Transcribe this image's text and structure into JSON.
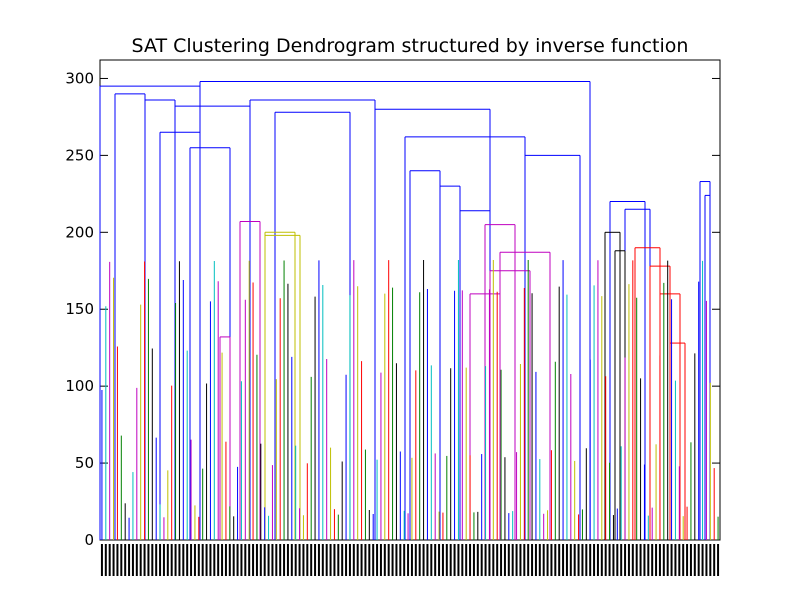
{
  "chart_data": {
    "type": "dendrogram",
    "title": "SAT Clustering Dendrogram structured by inverse function",
    "xlabel": "",
    "ylabel": "",
    "ylim": [
      0,
      312
    ],
    "y_ticks": [
      0,
      50,
      100,
      150,
      200,
      250,
      300
    ],
    "grid": false,
    "leaf_labels": [],
    "color_threshold_groups": [
      {
        "color": "#0000ff"
      },
      {
        "color": "#00bfbf"
      },
      {
        "color": "#bf00bf"
      },
      {
        "color": "#bfbf00"
      },
      {
        "color": "#ff0000"
      },
      {
        "color": "#008000"
      },
      {
        "color": "#000000"
      }
    ],
    "links": [
      {
        "x1": 0.0,
        "x2": 0.2,
        "y": 295,
        "color": "#0000ff"
      },
      {
        "x1": 0.2,
        "x2": 0.98,
        "y": 298,
        "color": "#0000ff"
      },
      {
        "x1": 0.03,
        "x2": 0.09,
        "y": 290,
        "color": "#0000ff"
      },
      {
        "x1": 0.09,
        "x2": 0.15,
        "y": 286,
        "color": "#0000ff"
      },
      {
        "x1": 0.15,
        "x2": 0.3,
        "y": 282,
        "color": "#0000ff"
      },
      {
        "x1": 0.3,
        "x2": 0.55,
        "y": 286,
        "color": "#0000ff"
      },
      {
        "x1": 0.35,
        "x2": 0.5,
        "y": 278,
        "color": "#0000ff"
      },
      {
        "x1": 0.12,
        "x2": 0.2,
        "y": 265,
        "color": "#0000ff"
      },
      {
        "x1": 0.18,
        "x2": 0.26,
        "y": 255,
        "color": "#0000ff"
      },
      {
        "x1": 0.55,
        "x2": 0.78,
        "y": 280,
        "color": "#0000ff"
      },
      {
        "x1": 0.61,
        "x2": 0.85,
        "y": 262,
        "color": "#0000ff"
      },
      {
        "x1": 0.85,
        "x2": 0.96,
        "y": 250,
        "color": "#0000ff"
      },
      {
        "x1": 0.62,
        "x2": 0.68,
        "y": 240,
        "color": "#0000ff"
      },
      {
        "x1": 0.68,
        "x2": 0.72,
        "y": 230,
        "color": "#0000ff"
      },
      {
        "x1": 0.72,
        "x2": 0.78,
        "y": 214,
        "color": "#0000ff"
      },
      {
        "x1": 0.77,
        "x2": 0.83,
        "y": 205,
        "color": "#bf00bf"
      },
      {
        "x1": 0.8,
        "x2": 0.9,
        "y": 187,
        "color": "#bf00bf"
      },
      {
        "x1": 0.78,
        "x2": 0.86,
        "y": 175,
        "color": "#bf00bf"
      },
      {
        "x1": 0.74,
        "x2": 0.8,
        "y": 160,
        "color": "#bf00bf"
      },
      {
        "x1": 0.33,
        "x2": 0.39,
        "y": 200,
        "color": "#bfbf00"
      },
      {
        "x1": 0.33,
        "x2": 0.4,
        "y": 198,
        "color": "#bfbf00"
      },
      {
        "x1": 0.28,
        "x2": 0.32,
        "y": 207,
        "color": "#bf00bf"
      },
      {
        "x1": 0.24,
        "x2": 0.26,
        "y": 132,
        "color": "#bf00bf"
      },
      {
        "x1": 1.02,
        "x2": 1.09,
        "y": 220,
        "color": "#0000ff"
      },
      {
        "x1": 1.05,
        "x2": 1.1,
        "y": 215,
        "color": "#0000ff"
      },
      {
        "x1": 1.07,
        "x2": 1.12,
        "y": 190,
        "color": "#ff0000"
      },
      {
        "x1": 1.1,
        "x2": 1.14,
        "y": 178,
        "color": "#ff0000"
      },
      {
        "x1": 1.12,
        "x2": 1.16,
        "y": 160,
        "color": "#ff0000"
      },
      {
        "x1": 1.14,
        "x2": 1.17,
        "y": 128,
        "color": "#ff0000"
      },
      {
        "x1": 1.01,
        "x2": 1.04,
        "y": 200,
        "color": "#000000"
      },
      {
        "x1": 1.03,
        "x2": 1.05,
        "y": 188,
        "color": "#000000"
      },
      {
        "x1": 1.2,
        "x2": 1.22,
        "y": 233,
        "color": "#0000ff"
      },
      {
        "x1": 1.21,
        "x2": 1.22,
        "y": 224,
        "color": "#0000ff"
      }
    ]
  }
}
